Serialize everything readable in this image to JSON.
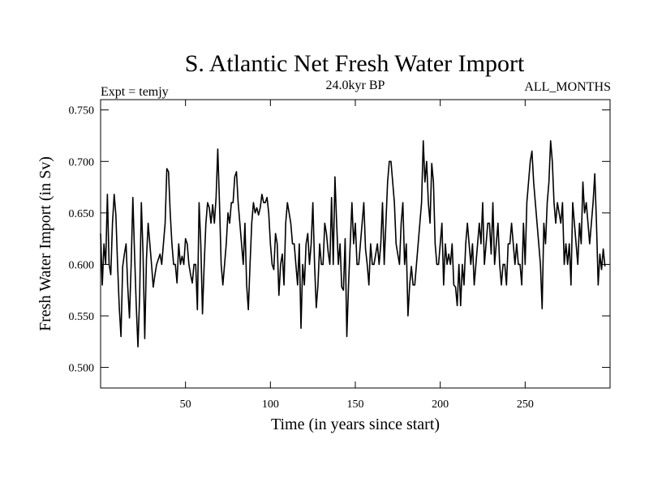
{
  "chart_data": {
    "type": "line",
    "title": "S. Atlantic Net Fresh Water Import",
    "subtitle": "24.0kyr BP",
    "left_annotation": "Expt = temjy",
    "right_annotation": "ALL_MONTHS",
    "xlabel": "Time (in years since start)",
    "ylabel": "Fresh Water Import (in Sv)",
    "xlim": [
      0,
      300
    ],
    "ylim": [
      0.48,
      0.76
    ],
    "xticks": [
      50,
      100,
      150,
      200,
      250
    ],
    "xtick_labels": [
      "50",
      "100",
      "150",
      "200",
      "250"
    ],
    "yticks": [
      0.5,
      0.55,
      0.6,
      0.65,
      0.7,
      0.75
    ],
    "ytick_labels": [
      "0.500",
      "0.550",
      "0.600",
      "0.650",
      "0.700",
      "0.750"
    ],
    "grid": false,
    "series": [
      {
        "name": "Net fresh water import",
        "color": "#000000",
        "x_start": 0,
        "x_step": 1,
        "values": [
          0.63,
          0.58,
          0.62,
          0.6,
          0.668,
          0.6,
          0.59,
          0.64,
          0.668,
          0.648,
          0.6,
          0.558,
          0.53,
          0.598,
          0.61,
          0.62,
          0.578,
          0.548,
          0.6,
          0.665,
          0.61,
          0.56,
          0.52,
          0.57,
          0.66,
          0.61,
          0.528,
          0.605,
          0.64,
          0.62,
          0.6,
          0.578,
          0.59,
          0.6,
          0.605,
          0.61,
          0.6,
          0.62,
          0.64,
          0.693,
          0.69,
          0.65,
          0.62,
          0.6,
          0.6,
          0.582,
          0.62,
          0.6,
          0.608,
          0.6,
          0.625,
          0.62,
          0.6,
          0.59,
          0.582,
          0.6,
          0.6,
          0.556,
          0.66,
          0.62,
          0.552,
          0.6,
          0.64,
          0.66,
          0.655,
          0.64,
          0.658,
          0.64,
          0.665,
          0.712,
          0.66,
          0.6,
          0.58,
          0.6,
          0.62,
          0.65,
          0.64,
          0.66,
          0.66,
          0.685,
          0.69,
          0.66,
          0.64,
          0.62,
          0.6,
          0.64,
          0.58,
          0.556,
          0.6,
          0.64,
          0.66,
          0.65,
          0.655,
          0.648,
          0.655,
          0.668,
          0.66,
          0.66,
          0.665,
          0.65,
          0.62,
          0.6,
          0.595,
          0.63,
          0.62,
          0.57,
          0.6,
          0.61,
          0.58,
          0.64,
          0.66,
          0.65,
          0.64,
          0.62,
          0.62,
          0.6,
          0.58,
          0.62,
          0.538,
          0.6,
          0.58,
          0.62,
          0.63,
          0.6,
          0.62,
          0.66,
          0.6,
          0.558,
          0.58,
          0.62,
          0.6,
          0.6,
          0.64,
          0.63,
          0.612,
          0.6,
          0.665,
          0.6,
          0.685,
          0.64,
          0.6,
          0.62,
          0.578,
          0.575,
          0.625,
          0.53,
          0.58,
          0.62,
          0.66,
          0.62,
          0.64,
          0.6,
          0.6,
          0.62,
          0.64,
          0.66,
          0.615,
          0.6,
          0.58,
          0.62,
          0.6,
          0.6,
          0.61,
          0.62,
          0.6,
          0.62,
          0.66,
          0.6,
          0.64,
          0.68,
          0.7,
          0.7,
          0.68,
          0.66,
          0.62,
          0.61,
          0.6,
          0.64,
          0.66,
          0.6,
          0.62,
          0.55,
          0.58,
          0.598,
          0.58,
          0.58,
          0.6,
          0.62,
          0.64,
          0.66,
          0.72,
          0.68,
          0.7,
          0.66,
          0.64,
          0.698,
          0.68,
          0.62,
          0.6,
          0.6,
          0.62,
          0.64,
          0.58,
          0.62,
          0.6,
          0.61,
          0.6,
          0.62,
          0.58,
          0.578,
          0.56,
          0.6,
          0.56,
          0.6,
          0.58,
          0.62,
          0.64,
          0.62,
          0.6,
          0.62,
          0.58,
          0.6,
          0.62,
          0.64,
          0.62,
          0.66,
          0.6,
          0.62,
          0.64,
          0.64,
          0.61,
          0.66,
          0.6,
          0.62,
          0.64,
          0.6,
          0.58,
          0.6,
          0.6,
          0.58,
          0.62,
          0.62,
          0.64,
          0.62,
          0.6,
          0.62,
          0.6,
          0.6,
          0.58,
          0.64,
          0.6,
          0.66,
          0.68,
          0.7,
          0.71,
          0.68,
          0.66,
          0.64,
          0.62,
          0.6,
          0.557,
          0.64,
          0.62,
          0.66,
          0.68,
          0.72,
          0.7,
          0.66,
          0.64,
          0.66,
          0.65,
          0.64,
          0.66,
          0.6,
          0.62,
          0.6,
          0.62,
          0.58,
          0.66,
          0.64,
          0.62,
          0.6,
          0.64,
          0.62,
          0.68,
          0.65,
          0.66,
          0.64,
          0.62,
          0.64,
          0.66,
          0.688,
          0.64,
          0.58,
          0.61,
          0.595,
          0.615,
          0.598
        ]
      }
    ]
  }
}
